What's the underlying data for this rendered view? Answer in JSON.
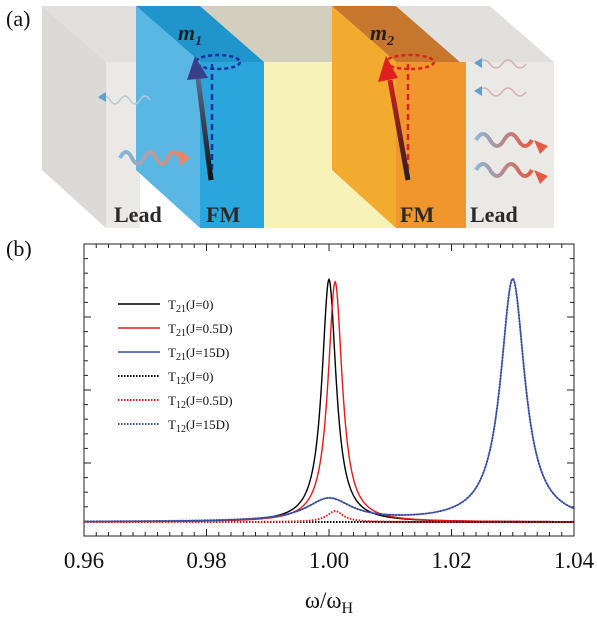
{
  "panel_a": {
    "label": "(a)",
    "m1": "m",
    "m1_sub": "1",
    "m2": "m",
    "m2_sub": "2",
    "lead_left": "Lead",
    "fm_left": "FM",
    "fm_right": "FM",
    "lead_right": "Lead",
    "colors": {
      "fm_left": "#2ba6dd",
      "fm_right": "#f0962c",
      "spacer": "#f7f3b8",
      "lead": "#ebe9e5"
    }
  },
  "panel_b": {
    "label": "(b)"
  },
  "chart_data": {
    "type": "line",
    "xlabel": "ω/ω",
    "xlabel_sub": "H",
    "xlim": [
      0.96,
      1.04
    ],
    "ylim": [
      0,
      1.08
    ],
    "xticks": [
      "0.96",
      "0.98",
      "1.00",
      "1.02",
      "1.04"
    ],
    "xtick_values": [
      0.96,
      0.98,
      1.0,
      1.02,
      1.04
    ],
    "y_tick_labels_shown": false,
    "legend_position": "top-left",
    "series": [
      {
        "name": "T",
        "sub": "21",
        "cond": "(J=0)",
        "color": "#000000",
        "style": "solid",
        "peaks": [
          {
            "x0": 1.0,
            "g": 0.0014,
            "a": 1.0
          }
        ]
      },
      {
        "name": "T",
        "sub": "21",
        "cond": "(J=0.5D)",
        "color": "#e31a1c",
        "style": "solid",
        "peaks": [
          {
            "x0": 1.001,
            "g": 0.0014,
            "a": 0.99
          }
        ]
      },
      {
        "name": "T",
        "sub": "21",
        "cond": "(J=15D)",
        "color": "#3a4f9e",
        "style": "solid",
        "peaks": [
          {
            "x0": 1.0,
            "g": 0.0045,
            "a": 0.093
          },
          {
            "x0": 1.03,
            "g": 0.0024,
            "a": 1.0
          }
        ]
      },
      {
        "name": "T",
        "sub": "12",
        "cond": "(J=0)",
        "color": "#000000",
        "style": "dotted",
        "peaks": [
          {
            "x0": 1.0,
            "g": 0.0014,
            "a": 0.0
          }
        ]
      },
      {
        "name": "T",
        "sub": "12",
        "cond": "(J=0.5D)",
        "color": "#e31a1c",
        "style": "dotted",
        "peaks": [
          {
            "x0": 1.001,
            "g": 0.0016,
            "a": 0.045
          }
        ]
      },
      {
        "name": "T",
        "sub": "12",
        "cond": "(J=15D)",
        "color": "#3a4f9e",
        "style": "dotted",
        "peaks": [
          {
            "x0": 1.0,
            "g": 0.0045,
            "a": 0.093
          },
          {
            "x0": 1.03,
            "g": 0.0024,
            "a": 1.0
          }
        ]
      }
    ]
  }
}
